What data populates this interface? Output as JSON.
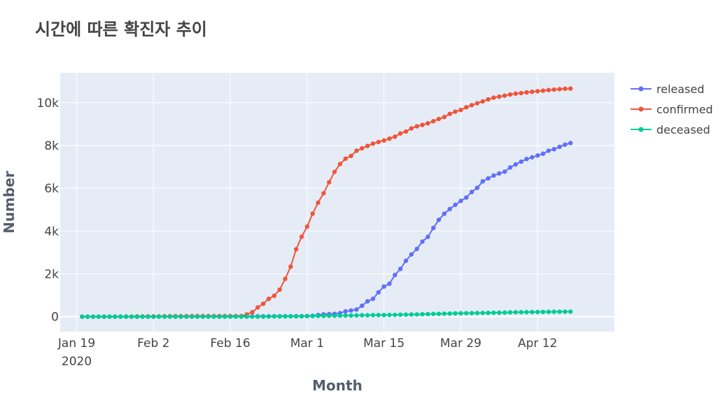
{
  "chart_data": {
    "type": "line",
    "title": "시간에 따른 확진자 추이",
    "xlabel": "Month",
    "ylabel": "Number",
    "grid": true,
    "legend_position": "right",
    "x_ticks": [
      {
        "date": "2020-01-19",
        "label": "Jan 19",
        "sublabel": "2020"
      },
      {
        "date": "2020-02-02",
        "label": "Feb 2"
      },
      {
        "date": "2020-02-16",
        "label": "Feb 16"
      },
      {
        "date": "2020-03-01",
        "label": "Mar 1"
      },
      {
        "date": "2020-03-15",
        "label": "Mar 15"
      },
      {
        "date": "2020-03-29",
        "label": "Mar 29"
      },
      {
        "date": "2020-04-12",
        "label": "Apr 12"
      }
    ],
    "x_start": "2020-01-20",
    "x_end": "2020-04-20",
    "xlim": [
      "2020-01-16",
      "2020-04-26"
    ],
    "ylim": [
      -700,
      11400
    ],
    "y_ticks": [
      {
        "value": 0,
        "label": "0"
      },
      {
        "value": 2000,
        "label": "2k"
      },
      {
        "value": 4000,
        "label": "4k"
      },
      {
        "value": 6000,
        "label": "6k"
      },
      {
        "value": 8000,
        "label": "8k"
      },
      {
        "value": 10000,
        "label": "10k"
      }
    ],
    "series": [
      {
        "name": "released",
        "color": "#636efa",
        "values": [
          0,
          0,
          0,
          0,
          0,
          0,
          0,
          0,
          0,
          0,
          0,
          0,
          0,
          1,
          1,
          2,
          3,
          3,
          4,
          7,
          9,
          9,
          12,
          16,
          16,
          16,
          16,
          16,
          16,
          16,
          16,
          16,
          18,
          18,
          18,
          22,
          22,
          22,
          22,
          24,
          27,
          30,
          41,
          80,
          108,
          118,
          130,
          166,
          247,
          288,
          333,
          510,
          714,
          833,
          1137,
          1407,
          1540,
          1947,
          2233,
          2612,
          2909,
          3166,
          3507,
          3730,
          4144,
          4528,
          4811,
          5033,
          5228,
          5408,
          5567,
          5828,
          6021,
          6325,
          6463,
          6598,
          6694,
          6776,
          6973,
          7117,
          7243,
          7368,
          7447,
          7534,
          7616,
          7757,
          7829,
          7937,
          8042,
          8114
        ],
        "values_note": ""
      },
      {
        "name": "confirmed",
        "color": "#ef553b",
        "values": [
          1,
          1,
          1,
          1,
          2,
          3,
          4,
          4,
          4,
          6,
          11,
          12,
          15,
          15,
          16,
          19,
          23,
          24,
          24,
          27,
          27,
          28,
          28,
          28,
          28,
          28,
          29,
          30,
          31,
          31,
          104,
          204,
          433,
          602,
          833,
          977,
          1261,
          1766,
          2337,
          3150,
          3736,
          4212,
          4812,
          5328,
          5766,
          6284,
          6767,
          7134,
          7382,
          7513,
          7755,
          7869,
          7979,
          8086,
          8162,
          8236,
          8320,
          8413,
          8565,
          8652,
          8799,
          8897,
          8961,
          9037,
          9137,
          9241,
          9332,
          9478,
          9583,
          9661,
          9786,
          9887,
          9976,
          10062,
          10156,
          10237,
          10284,
          10331,
          10384,
          10423,
          10450,
          10480,
          10512,
          10537,
          10564,
          10591,
          10613,
          10635,
          10653,
          10661
        ],
        "values_note": ""
      },
      {
        "name": "deceased",
        "color": "#00cc96",
        "values": [
          0,
          0,
          0,
          0,
          0,
          0,
          0,
          0,
          0,
          0,
          0,
          0,
          0,
          0,
          0,
          0,
          0,
          0,
          0,
          0,
          0,
          0,
          0,
          0,
          0,
          0,
          0,
          0,
          0,
          0,
          0,
          1,
          2,
          2,
          6,
          8,
          10,
          12,
          13,
          16,
          17,
          28,
          28,
          35,
          35,
          42,
          44,
          50,
          53,
          54,
          60,
          66,
          66,
          72,
          75,
          75,
          81,
          84,
          91,
          94,
          102,
          104,
          111,
          120,
          126,
          131,
          139,
          144,
          152,
          158,
          162,
          165,
          169,
          174,
          177,
          183,
          186,
          192,
          200,
          204,
          208,
          211,
          214,
          217,
          222,
          225,
          229,
          230,
          232,
          234
        ],
        "values_note": ""
      }
    ]
  }
}
